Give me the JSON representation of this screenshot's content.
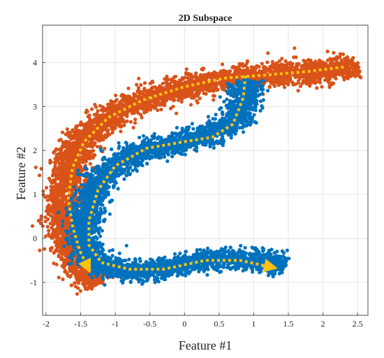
{
  "chart_data": {
    "type": "scatter",
    "title": "2D Subspace",
    "xlabel": "Feature #1",
    "ylabel": "Feature #2",
    "xlim": [
      -2.05,
      2.65
    ],
    "ylim": [
      -1.75,
      4.85
    ],
    "xticks": [
      -2,
      -1.5,
      -1,
      -0.5,
      0,
      0.5,
      1,
      1.5,
      2,
      2.5
    ],
    "xtick_labels": [
      "-2",
      "-1.5",
      "-1",
      "-0.5",
      "0",
      "0.5",
      "1",
      "1.5",
      "2",
      "2.5"
    ],
    "yticks": [
      -1,
      0,
      1,
      2,
      3,
      4
    ],
    "ytick_labels": [
      "-1",
      "0",
      "1",
      "2",
      "3",
      "4"
    ],
    "grid": true,
    "series": [
      {
        "color": "#d95319",
        "band_halfwidth": 0.24,
        "path": [
          [
            -1.25,
            -1.05
          ],
          [
            -1.45,
            -0.8
          ],
          [
            -1.6,
            -0.4
          ],
          [
            -1.72,
            0.2
          ],
          [
            -1.75,
            0.8
          ],
          [
            -1.68,
            1.6
          ],
          [
            -1.5,
            2.2
          ],
          [
            -1.1,
            2.75
          ],
          [
            -0.6,
            3.15
          ],
          [
            0.0,
            3.45
          ],
          [
            0.5,
            3.6
          ],
          [
            1.0,
            3.7
          ],
          [
            1.5,
            3.75
          ],
          [
            2.0,
            3.8
          ],
          [
            2.5,
            3.9
          ]
        ]
      },
      {
        "color": "#0072bd",
        "band_halfwidth": 0.21,
        "path": [
          [
            1.45,
            -0.6
          ],
          [
            1.2,
            -0.55
          ],
          [
            0.9,
            -0.45
          ],
          [
            0.5,
            -0.45
          ],
          [
            0.0,
            -0.6
          ],
          [
            -0.5,
            -0.75
          ],
          [
            -1.0,
            -0.7
          ],
          [
            -1.3,
            -0.55
          ],
          [
            -1.45,
            -0.2
          ],
          [
            -1.45,
            0.4
          ],
          [
            -1.3,
            1.1
          ],
          [
            -1.05,
            1.65
          ],
          [
            -0.6,
            2.0
          ],
          [
            0.0,
            2.2
          ],
          [
            0.5,
            2.4
          ],
          [
            0.85,
            2.9
          ],
          [
            0.9,
            3.6
          ]
        ]
      }
    ],
    "trend_lines": [
      {
        "color": "#ffc20e",
        "style": "dotted",
        "arrow": "end",
        "points": [
          [
            2.3,
            3.9
          ],
          [
            1.8,
            3.8
          ],
          [
            1.2,
            3.72
          ],
          [
            0.6,
            3.65
          ],
          [
            0.0,
            3.45
          ],
          [
            -0.6,
            3.15
          ],
          [
            -1.1,
            2.75
          ],
          [
            -1.45,
            2.2
          ],
          [
            -1.62,
            1.6
          ],
          [
            -1.68,
            0.9
          ],
          [
            -1.62,
            0.3
          ],
          [
            -1.52,
            -0.25
          ],
          [
            -1.4,
            -0.65
          ]
        ]
      },
      {
        "color": "#ffc20e",
        "style": "dotted",
        "arrow": "end",
        "points": [
          [
            0.88,
            3.7
          ],
          [
            0.85,
            3.2
          ],
          [
            0.7,
            2.6
          ],
          [
            0.4,
            2.3
          ],
          [
            0.0,
            2.2
          ],
          [
            -0.55,
            2.05
          ],
          [
            -1.0,
            1.65
          ],
          [
            -1.25,
            1.1
          ],
          [
            -1.38,
            0.4
          ],
          [
            -1.38,
            -0.15
          ],
          [
            -1.2,
            -0.55
          ],
          [
            -0.8,
            -0.7
          ],
          [
            -0.3,
            -0.7
          ],
          [
            0.3,
            -0.5
          ],
          [
            0.8,
            -0.5
          ],
          [
            1.25,
            -0.65
          ]
        ]
      }
    ]
  }
}
